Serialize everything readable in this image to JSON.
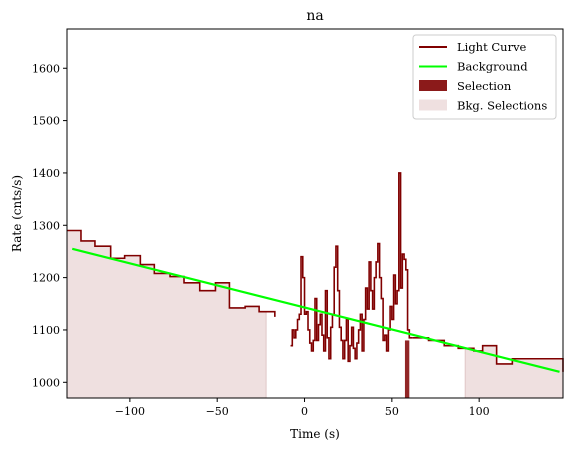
{
  "chart_data": {
    "type": "line",
    "title": "na",
    "xlabel": "Time (s)",
    "ylabel": "Rate (cnts/s)",
    "xlim": [
      -136,
      148
    ],
    "ylim": [
      970,
      1675
    ],
    "x_ticks": [
      -100,
      -50,
      0,
      50,
      100
    ],
    "x_tick_labels": [
      "−100",
      "−50",
      "0",
      "50",
      "100"
    ],
    "y_ticks": [
      1000,
      1100,
      1200,
      1300,
      1400,
      1500,
      1600
    ],
    "y_tick_labels": [
      "1000",
      "1100",
      "1200",
      "1300",
      "1400",
      "1500",
      "1600"
    ],
    "grid": false,
    "legend_position": "top-right",
    "colors": {
      "light_curve": "#800000",
      "background": "#00ff00",
      "selection": "#8b1a1a",
      "bkg_selection": "#efe0e0",
      "bkg_selection_edge": "#e0c7c7"
    },
    "legend": [
      {
        "label": "Light Curve",
        "kind": "line",
        "color": "#800000"
      },
      {
        "label": "Background",
        "kind": "line",
        "color": "#00ff00"
      },
      {
        "label": "Selection",
        "kind": "patch",
        "color": "#8b1a1a"
      },
      {
        "label": "Bkg. Selections",
        "kind": "patch",
        "color": "#efe0e0"
      }
    ],
    "selection": {
      "x": [
        57.5,
        60
      ]
    },
    "bkg_selections": [
      {
        "x": [
          -136,
          -22
        ]
      },
      {
        "x": [
          92,
          148
        ]
      }
    ],
    "background": {
      "x": [
        -133,
        146
      ],
      "y": [
        1255,
        1020
      ]
    },
    "series": [
      {
        "name": "Light Curve",
        "segments": [
          {
            "x": [
              -136,
              -128,
              -120,
              -111,
              -103,
              -94,
              -86,
              -77,
              -69,
              -60,
              -51,
              -43,
              -34,
              -26,
              -17
            ],
            "y": [
              1290,
              1270,
              1260,
              1237,
              1242,
              1225,
              1208,
              1202,
              1190,
              1175,
              1190,
              1142,
              1145,
              1135,
              1125
            ]
          },
          {
            "x": [
              -8,
              -7,
              -6,
              -5,
              -4,
              -3,
              -2,
              -1,
              0,
              1,
              2,
              3,
              4,
              5,
              6,
              7,
              8,
              9,
              10,
              11,
              12,
              13,
              14,
              15,
              16,
              17,
              18,
              19,
              20,
              21,
              22,
              23,
              24,
              25,
              26,
              27,
              28,
              29,
              30,
              31,
              32,
              33,
              34,
              35,
              36,
              37,
              38,
              39,
              40,
              41,
              42,
              43,
              44,
              45,
              46,
              47,
              48,
              49,
              50,
              51,
              52,
              53,
              54,
              55,
              56,
              57,
              58,
              59,
              60,
              61,
              62
            ],
            "y": [
              1070,
              1100,
              1085,
              1100,
              1120,
              1130,
              1240,
              1200,
              1130,
              1135,
              1100,
              1075,
              1060,
              1080,
              1160,
              1080,
              1110,
              1130,
              1090,
              1060,
              1175,
              1085,
              1045,
              1105,
              1130,
              1220,
              1260,
              1175,
              1105,
              1080,
              1045,
              1080,
              1120,
              1040,
              1070,
              1105,
              1065,
              1045,
              1075,
              1100,
              1130,
              1060,
              1120,
              1180,
              1140,
              1230,
              1175,
              1140,
              1200,
              1230,
              1265,
              1200,
              1160,
              1080,
              1090,
              1060,
              1100,
              1145,
              1120,
              1205,
              1150,
              1175,
              1400,
              1180,
              1245,
              1235,
              1215,
              1100,
              1085,
              1085,
              1085
            ]
          },
          {
            "x": [
              62,
              71,
              80,
              88,
              97,
              102,
              110,
              119,
              128,
              137,
              148
            ],
            "y": [
              1085,
              1080,
              1070,
              1065,
              1060,
              1070,
              1035,
              1045,
              1045,
              1045,
              1020
            ]
          }
        ]
      }
    ]
  }
}
